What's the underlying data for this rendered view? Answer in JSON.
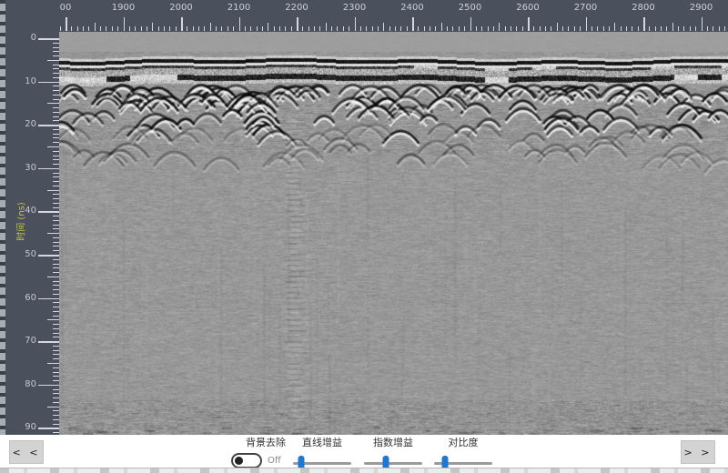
{
  "top_axis": {
    "tick_labels": [
      "00",
      "1900",
      "2000",
      "2100",
      "2200",
      "2300",
      "2400",
      "2500",
      "2600",
      "2700",
      "2800",
      "2900"
    ]
  },
  "left_axis": {
    "title": "时间 (ns)",
    "tick_labels": [
      "0",
      "10",
      "20",
      "30",
      "40",
      "50",
      "60",
      "70",
      "80",
      "90"
    ]
  },
  "controls": {
    "background_removal": {
      "label": "背景去除",
      "state_label": "Off"
    },
    "sliders": [
      {
        "label": "直线增益",
        "value_pct": 14
      },
      {
        "label": "指数增益",
        "value_pct": 37
      },
      {
        "label": "对比度",
        "value_pct": 18
      }
    ]
  },
  "nav": {
    "prev_label": "< <",
    "next_label": "> >"
  },
  "colors": {
    "accent_blue": "#1e78d2",
    "ruler_background": "#4a505c",
    "axis_title_yellow": "#c6c93b",
    "radargram_base": "#9c9c9c"
  }
}
